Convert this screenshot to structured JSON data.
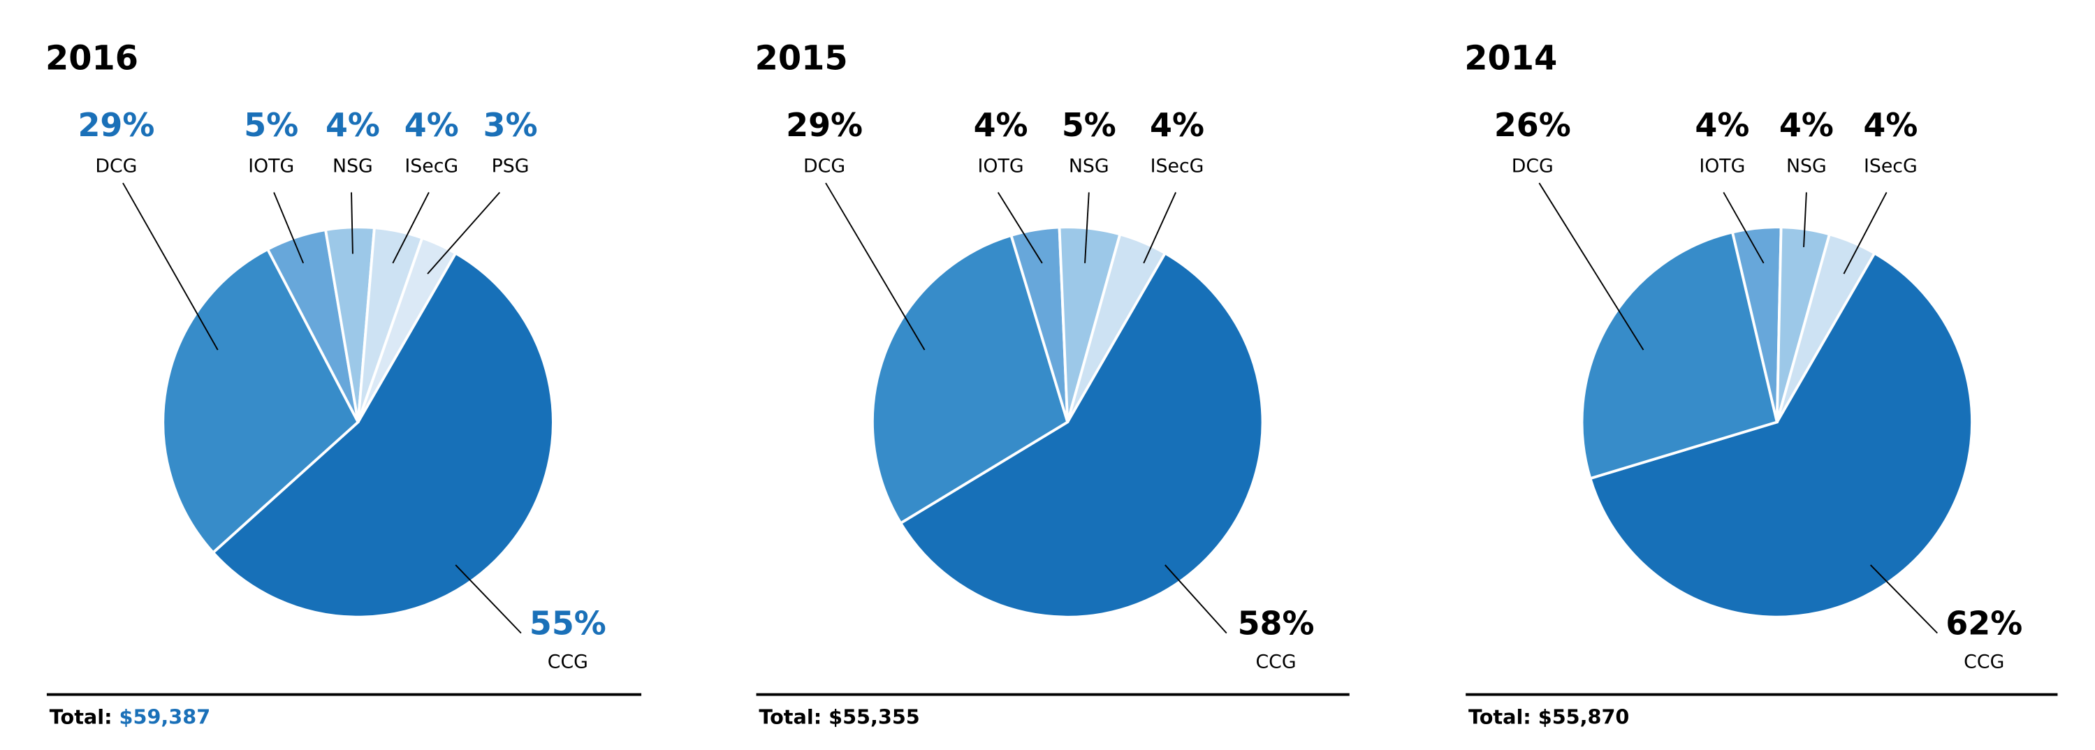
{
  "chart_data": [
    {
      "type": "pie",
      "title": "2016",
      "unit": "%",
      "labels": [
        "CCG",
        "DCG",
        "IOTG",
        "NSG",
        "ISecG",
        "PSG"
      ],
      "values": [
        55,
        29,
        5,
        4,
        4,
        3
      ],
      "value_labels": [
        "55%",
        "29%",
        "5%",
        "4%",
        "4%",
        "3%"
      ],
      "total_label": "Total:",
      "total_value": "$59,387",
      "label_color": "#1a70b8"
    },
    {
      "type": "pie",
      "title": "2015",
      "unit": "%",
      "labels": [
        "CCG",
        "DCG",
        "IOTG",
        "NSG",
        "ISecG"
      ],
      "values": [
        58,
        29,
        4,
        5,
        4
      ],
      "value_labels": [
        "58%",
        "29%",
        "4%",
        "5%",
        "4%"
      ],
      "total_label": "Total:",
      "total_value": "$55,355",
      "label_color": "#000000"
    },
    {
      "type": "pie",
      "title": "2014",
      "unit": "%",
      "labels": [
        "CCG",
        "DCG",
        "IOTG",
        "NSG",
        "ISecG"
      ],
      "values": [
        62,
        26,
        4,
        4,
        4
      ],
      "value_labels": [
        "62%",
        "26%",
        "4%",
        "4%",
        "4%"
      ],
      "total_label": "Total:",
      "total_value": "$55,870",
      "label_color": "#000000"
    }
  ],
  "colors": {
    "CCG": "#1770b8",
    "DCG": "#378cc9",
    "IOTG": "#67a7da",
    "NSG": "#9cc8e8",
    "ISecG": "#cde2f3",
    "PSG": "#dbe9f6"
  }
}
